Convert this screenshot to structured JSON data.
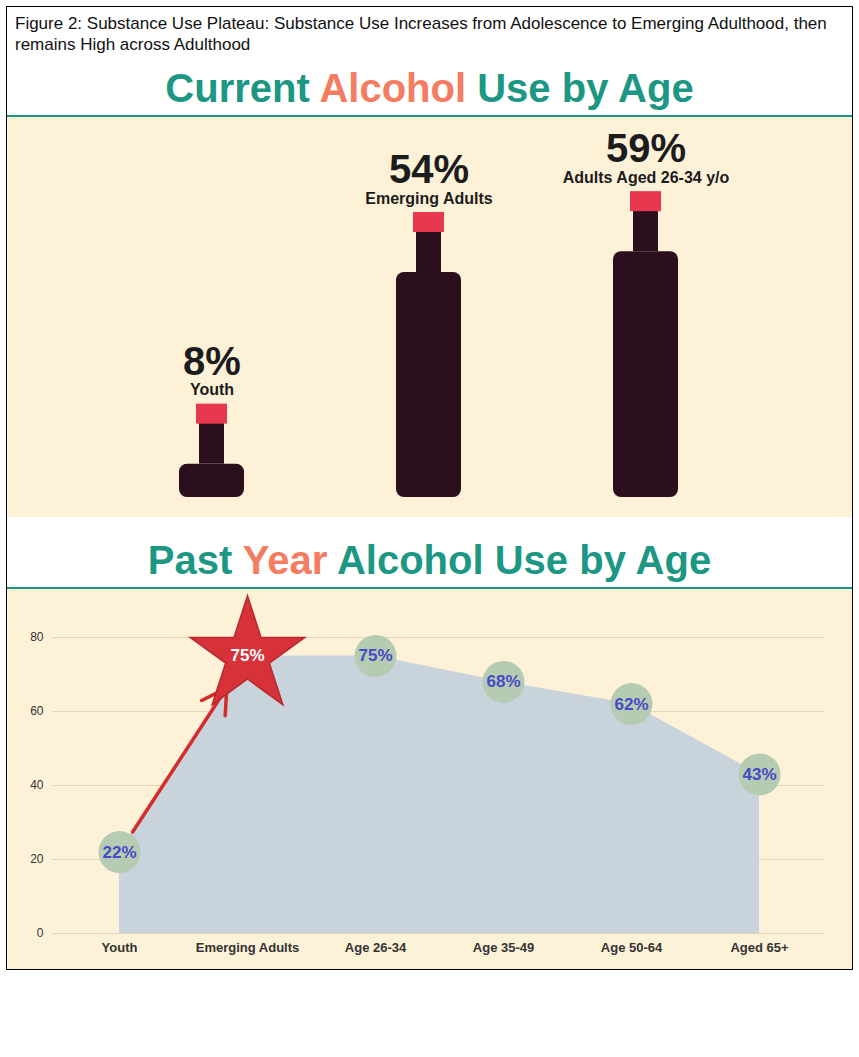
{
  "caption": "Figure 2: Substance Use Plateau: Substance Use Increases from Adolescence to Emerging Adulthood, then remains High across Adulthood",
  "chart_data": [
    {
      "type": "bar",
      "title": "Current Alcohol Use by Age",
      "categories": [
        "Youth",
        "Emerging Adults",
        "Adults Aged 26-34 y/o"
      ],
      "values": [
        8,
        54,
        59
      ],
      "value_labels": [
        "8%",
        "54%",
        "59%"
      ],
      "color": "#2b0f1c",
      "ylim": [
        0,
        60
      ],
      "grid": false,
      "tick_labels": false,
      "data_labels": true
    },
    {
      "type": "area",
      "title": "Past Year Alcohol Use by Age",
      "categories": [
        "Youth",
        "Emerging Adults",
        "Age 26-34",
        "Age 35-49",
        "Age 50-64",
        "Aged 65+"
      ],
      "values": [
        22,
        75,
        75,
        68,
        62,
        43
      ],
      "value_labels": [
        "22%",
        "75%",
        "75%",
        "68%",
        "62%",
        "43%"
      ],
      "color": "#c9d3dc",
      "ylim": [
        0,
        80
      ],
      "yticks": [
        0,
        20,
        40,
        60,
        80
      ],
      "grid": true,
      "data_labels": true
    }
  ]
}
